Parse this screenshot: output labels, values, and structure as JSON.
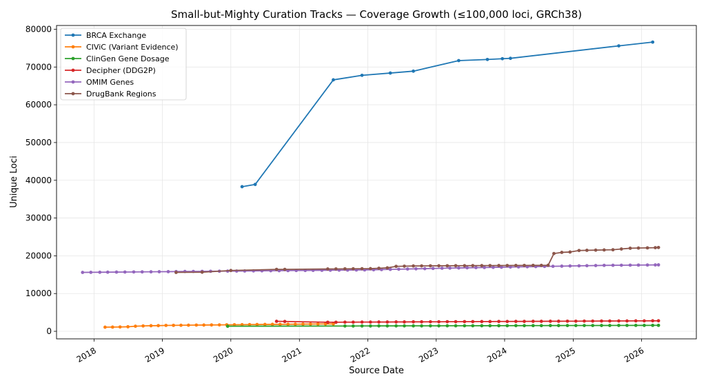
{
  "chart_data": {
    "type": "line",
    "title": "Small-but-Mighty Curation Tracks — Coverage Growth (≤100,000 loci, GRCh38)",
    "xlabel": "Source Date",
    "ylabel": "Unique Loci",
    "xlim": [
      "2017-06-15",
      "2026-10-20"
    ],
    "ylim": [
      -2000,
      81000
    ],
    "yticks": [
      0,
      10000,
      20000,
      30000,
      40000,
      50000,
      60000,
      70000,
      80000
    ],
    "xticks": [
      "2018",
      "2019",
      "2020",
      "2021",
      "2022",
      "2023",
      "2024",
      "2025",
      "2026"
    ],
    "grid": true,
    "legend_position": "top-left",
    "series": [
      {
        "name": "BRCA Exchange",
        "color": "#1f77b4",
        "points": [
          [
            "2020-03-01",
            38300
          ],
          [
            "2020-05-10",
            38900
          ],
          [
            "2021-07-01",
            66600
          ],
          [
            "2021-12-01",
            67800
          ],
          [
            "2022-05-01",
            68400
          ],
          [
            "2022-09-01",
            68900
          ],
          [
            "2023-05-01",
            71700
          ],
          [
            "2023-10-01",
            72000
          ],
          [
            "2023-12-20",
            72200
          ],
          [
            "2024-02-01",
            72300
          ],
          [
            "2025-09-01",
            75600
          ],
          [
            "2026-03-01",
            76600
          ]
        ]
      },
      {
        "name": "CIViC (Variant Evidence)",
        "color": "#ff7f0e",
        "points": [
          [
            "2018-03-01",
            1100
          ],
          [
            "2018-04-10",
            1120
          ],
          [
            "2018-05-20",
            1150
          ],
          [
            "2018-07-01",
            1200
          ],
          [
            "2018-08-10",
            1350
          ],
          [
            "2018-09-20",
            1420
          ],
          [
            "2018-11-01",
            1480
          ],
          [
            "2018-12-10",
            1500
          ],
          [
            "2019-01-20",
            1560
          ],
          [
            "2019-03-01",
            1580
          ],
          [
            "2019-04-10",
            1600
          ],
          [
            "2019-05-20",
            1620
          ],
          [
            "2019-07-01",
            1650
          ],
          [
            "2019-08-10",
            1660
          ],
          [
            "2019-09-20",
            1680
          ],
          [
            "2019-11-01",
            1700
          ],
          [
            "2019-12-10",
            1720
          ],
          [
            "2020-01-20",
            1740
          ],
          [
            "2020-03-01",
            1760
          ],
          [
            "2020-04-10",
            1780
          ],
          [
            "2020-05-20",
            1800
          ],
          [
            "2020-07-01",
            1820
          ],
          [
            "2020-08-10",
            1840
          ],
          [
            "2020-09-20",
            1850
          ],
          [
            "2020-11-01",
            1870
          ],
          [
            "2020-12-10",
            1890
          ],
          [
            "2021-01-20",
            1910
          ],
          [
            "2021-03-01",
            1920
          ],
          [
            "2021-04-10",
            1940
          ],
          [
            "2021-05-20",
            1950
          ],
          [
            "2021-07-01",
            1960
          ]
        ]
      },
      {
        "name": "ClinGen Gene Dosage",
        "color": "#2ca02c",
        "points": [
          [
            "2019-12-15",
            1350
          ],
          [
            "2021-09-01",
            1400
          ],
          [
            "2021-10-15",
            1400
          ],
          [
            "2021-12-01",
            1420
          ],
          [
            "2022-01-15",
            1420
          ],
          [
            "2022-03-01",
            1430
          ],
          [
            "2022-04-15",
            1430
          ],
          [
            "2022-06-01",
            1430
          ],
          [
            "2022-07-15",
            1440
          ],
          [
            "2022-09-01",
            1440
          ],
          [
            "2022-10-15",
            1440
          ],
          [
            "2022-12-01",
            1450
          ],
          [
            "2023-01-15",
            1450
          ],
          [
            "2023-03-01",
            1460
          ],
          [
            "2023-04-15",
            1460
          ],
          [
            "2023-06-01",
            1470
          ],
          [
            "2023-07-15",
            1470
          ],
          [
            "2023-09-01",
            1480
          ],
          [
            "2023-10-15",
            1480
          ],
          [
            "2023-12-01",
            1490
          ],
          [
            "2024-01-15",
            1490
          ],
          [
            "2024-03-01",
            1500
          ],
          [
            "2024-04-15",
            1500
          ],
          [
            "2024-06-01",
            1510
          ],
          [
            "2024-07-15",
            1510
          ],
          [
            "2024-09-01",
            1520
          ],
          [
            "2024-10-15",
            1520
          ],
          [
            "2024-12-01",
            1530
          ],
          [
            "2025-01-15",
            1530
          ],
          [
            "2025-03-01",
            1540
          ],
          [
            "2025-04-15",
            1540
          ],
          [
            "2025-06-01",
            1550
          ],
          [
            "2025-07-15",
            1550
          ],
          [
            "2025-09-01",
            1560
          ],
          [
            "2025-10-15",
            1560
          ],
          [
            "2025-12-01",
            1570
          ],
          [
            "2026-01-15",
            1570
          ],
          [
            "2026-03-01",
            1580
          ],
          [
            "2026-04-01",
            1580
          ]
        ]
      },
      {
        "name": "Decipher (DDG2P)",
        "color": "#d62728",
        "points": [
          [
            "2020-09-01",
            2650
          ],
          [
            "2020-10-15",
            2600
          ],
          [
            "2021-06-01",
            2400
          ],
          [
            "2021-07-15",
            2400
          ],
          [
            "2021-09-01",
            2420
          ],
          [
            "2021-10-15",
            2420
          ],
          [
            "2021-12-01",
            2440
          ],
          [
            "2022-01-15",
            2440
          ],
          [
            "2022-03-01",
            2460
          ],
          [
            "2022-04-15",
            2460
          ],
          [
            "2022-06-01",
            2480
          ],
          [
            "2022-07-15",
            2480
          ],
          [
            "2022-09-01",
            2500
          ],
          [
            "2022-10-15",
            2500
          ],
          [
            "2022-12-01",
            2520
          ],
          [
            "2023-01-15",
            2520
          ],
          [
            "2023-03-01",
            2540
          ],
          [
            "2023-04-15",
            2540
          ],
          [
            "2023-06-01",
            2560
          ],
          [
            "2023-07-15",
            2560
          ],
          [
            "2023-09-01",
            2580
          ],
          [
            "2023-10-15",
            2580
          ],
          [
            "2023-12-01",
            2600
          ],
          [
            "2024-01-15",
            2600
          ],
          [
            "2024-03-01",
            2620
          ],
          [
            "2024-04-15",
            2620
          ],
          [
            "2024-06-01",
            2640
          ],
          [
            "2024-07-15",
            2640
          ],
          [
            "2024-09-01",
            2660
          ],
          [
            "2024-10-15",
            2660
          ],
          [
            "2024-12-01",
            2680
          ],
          [
            "2025-01-15",
            2680
          ],
          [
            "2025-03-01",
            2700
          ],
          [
            "2025-04-15",
            2700
          ],
          [
            "2025-06-01",
            2720
          ],
          [
            "2025-07-15",
            2720
          ],
          [
            "2025-09-01",
            2740
          ],
          [
            "2025-10-15",
            2740
          ],
          [
            "2025-12-01",
            2760
          ],
          [
            "2026-01-15",
            2760
          ],
          [
            "2026-03-01",
            2780
          ],
          [
            "2026-04-01",
            2780
          ]
        ]
      },
      {
        "name": "OMIM Genes",
        "color": "#9467bd",
        "points": [
          [
            "2017-11-01",
            15600
          ],
          [
            "2017-12-15",
            15620
          ],
          [
            "2018-02-01",
            15640
          ],
          [
            "2018-03-15",
            15660
          ],
          [
            "2018-05-01",
            15680
          ],
          [
            "2018-06-15",
            15700
          ],
          [
            "2018-08-01",
            15720
          ],
          [
            "2018-09-15",
            15740
          ],
          [
            "2018-11-01",
            15760
          ],
          [
            "2018-12-15",
            15780
          ],
          [
            "2019-02-01",
            15800
          ],
          [
            "2019-03-15",
            15820
          ],
          [
            "2019-05-01",
            15840
          ],
          [
            "2019-06-15",
            15860
          ],
          [
            "2019-08-01",
            15880
          ],
          [
            "2019-09-15",
            15900
          ],
          [
            "2019-11-01",
            15920
          ],
          [
            "2019-12-15",
            15940
          ],
          [
            "2020-02-01",
            15960
          ],
          [
            "2020-03-15",
            15980
          ],
          [
            "2020-05-01",
            16000
          ],
          [
            "2020-06-15",
            16020
          ],
          [
            "2020-08-01",
            16040
          ],
          [
            "2020-09-15",
            16060
          ],
          [
            "2020-11-01",
            16080
          ],
          [
            "2020-12-15",
            16100
          ],
          [
            "2021-02-01",
            16120
          ],
          [
            "2021-03-15",
            16140
          ],
          [
            "2021-05-01",
            16160
          ],
          [
            "2021-06-15",
            16180
          ],
          [
            "2021-08-01",
            16200
          ],
          [
            "2021-09-15",
            16220
          ],
          [
            "2021-11-01",
            16240
          ],
          [
            "2021-12-15",
            16260
          ],
          [
            "2022-02-01",
            16300
          ],
          [
            "2022-03-15",
            16350
          ],
          [
            "2022-05-01",
            16400
          ],
          [
            "2022-06-15",
            16450
          ],
          [
            "2022-08-01",
            16500
          ],
          [
            "2022-09-15",
            16550
          ],
          [
            "2022-11-01",
            16600
          ],
          [
            "2022-12-15",
            16650
          ],
          [
            "2023-02-01",
            16700
          ],
          [
            "2023-03-15",
            16740
          ],
          [
            "2023-05-01",
            16780
          ],
          [
            "2023-06-15",
            16820
          ],
          [
            "2023-08-01",
            16860
          ],
          [
            "2023-09-15",
            16900
          ],
          [
            "2023-11-01",
            16940
          ],
          [
            "2023-12-15",
            16980
          ],
          [
            "2024-02-01",
            17020
          ],
          [
            "2024-03-15",
            17060
          ],
          [
            "2024-05-01",
            17100
          ],
          [
            "2024-06-15",
            17140
          ],
          [
            "2024-08-01",
            17180
          ],
          [
            "2024-09-15",
            17220
          ],
          [
            "2024-11-01",
            17260
          ],
          [
            "2024-12-15",
            17300
          ],
          [
            "2025-02-01",
            17340
          ],
          [
            "2025-03-15",
            17380
          ],
          [
            "2025-05-01",
            17420
          ],
          [
            "2025-06-15",
            17460
          ],
          [
            "2025-08-01",
            17480
          ],
          [
            "2025-09-15",
            17500
          ],
          [
            "2025-11-01",
            17520
          ],
          [
            "2025-12-15",
            17540
          ],
          [
            "2026-02-01",
            17560
          ],
          [
            "2026-03-15",
            17580
          ],
          [
            "2026-04-01",
            17600
          ]
        ]
      },
      {
        "name": "DrugBank Regions",
        "color": "#8c564b",
        "points": [
          [
            "2019-03-15",
            15600
          ],
          [
            "2019-08-01",
            15650
          ],
          [
            "2020-01-01",
            16100
          ],
          [
            "2020-09-01",
            16400
          ],
          [
            "2020-10-15",
            16400
          ],
          [
            "2021-06-01",
            16500
          ],
          [
            "2021-07-15",
            16520
          ],
          [
            "2021-09-01",
            16540
          ],
          [
            "2021-10-15",
            16560
          ],
          [
            "2021-12-01",
            16580
          ],
          [
            "2022-01-15",
            16600
          ],
          [
            "2022-03-01",
            16700
          ],
          [
            "2022-04-15",
            16800
          ],
          [
            "2022-06-01",
            17200
          ],
          [
            "2022-07-15",
            17250
          ],
          [
            "2022-09-01",
            17300
          ],
          [
            "2022-10-15",
            17320
          ],
          [
            "2022-12-01",
            17340
          ],
          [
            "2023-01-15",
            17350
          ],
          [
            "2023-03-01",
            17360
          ],
          [
            "2023-04-15",
            17370
          ],
          [
            "2023-06-01",
            17380
          ],
          [
            "2023-07-15",
            17390
          ],
          [
            "2023-09-01",
            17400
          ],
          [
            "2023-10-15",
            17410
          ],
          [
            "2023-12-01",
            17420
          ],
          [
            "2024-01-15",
            17430
          ],
          [
            "2024-03-01",
            17440
          ],
          [
            "2024-04-15",
            17450
          ],
          [
            "2024-06-01",
            17460
          ],
          [
            "2024-07-15",
            17470
          ],
          [
            "2024-08-20",
            17480
          ],
          [
            "2024-09-20",
            20600
          ],
          [
            "2024-11-01",
            20900
          ],
          [
            "2024-12-15",
            21000
          ],
          [
            "2025-02-01",
            21400
          ],
          [
            "2025-03-15",
            21450
          ],
          [
            "2025-05-01",
            21500
          ],
          [
            "2025-06-15",
            21550
          ],
          [
            "2025-08-01",
            21600
          ],
          [
            "2025-09-15",
            21800
          ],
          [
            "2025-11-01",
            22000
          ],
          [
            "2025-12-15",
            22050
          ],
          [
            "2026-02-01",
            22100
          ],
          [
            "2026-03-15",
            22150
          ],
          [
            "2026-04-01",
            22200
          ]
        ]
      }
    ]
  }
}
